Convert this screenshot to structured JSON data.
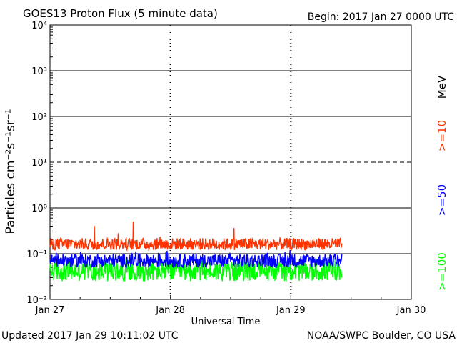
{
  "title": "GOES13 Proton Flux (5 minute data)",
  "begin_label": "Begin: 2017 Jan 27 0000 UTC",
  "updated_label": "Updated 2017 Jan 29 10:11:02 UTC",
  "credit_label": "NOAA/SWPC Boulder, CO USA",
  "colors": {
    "ge10": "#ff3300",
    "ge50": "#0000ff",
    "ge100": "#00ff00",
    "mev": "#000000"
  },
  "chart_data": {
    "type": "line",
    "title": "GOES13 Proton Flux (5 minute data)",
    "xlabel": "Universal Time",
    "ylabel": "Particles cm⁻²s⁻¹sr⁻¹",
    "y_scale": "log",
    "ylim": [
      0.01,
      10000
    ],
    "xlim": [
      "2017-01-27 00:00",
      "2017-01-30 00:00"
    ],
    "x_ticks": [
      "Jan 27",
      "Jan 28",
      "Jan 29",
      "Jan 30"
    ],
    "y_ticks": [
      "10⁻²",
      "10⁻¹",
      "10⁰",
      "10¹",
      "10²",
      "10³",
      "10⁴"
    ],
    "y_exponents": [
      -2,
      -1,
      0,
      1,
      2,
      3,
      4
    ],
    "data_end": "2017-01-29 10:10",
    "series": [
      {
        "name": ">=10",
        "unit": "MeV",
        "color": "#ff3300",
        "values_typical": [
          0.12,
          0.22
        ],
        "peak": 0.6
      },
      {
        "name": ">=50",
        "color": "#0000ff",
        "values_typical": [
          0.05,
          0.1
        ],
        "peak": 0.12
      },
      {
        "name": ">=100",
        "color": "#00ff00",
        "values_typical": [
          0.025,
          0.07
        ],
        "peak": 0.08
      }
    ],
    "legend_placement": "right-vertical"
  }
}
